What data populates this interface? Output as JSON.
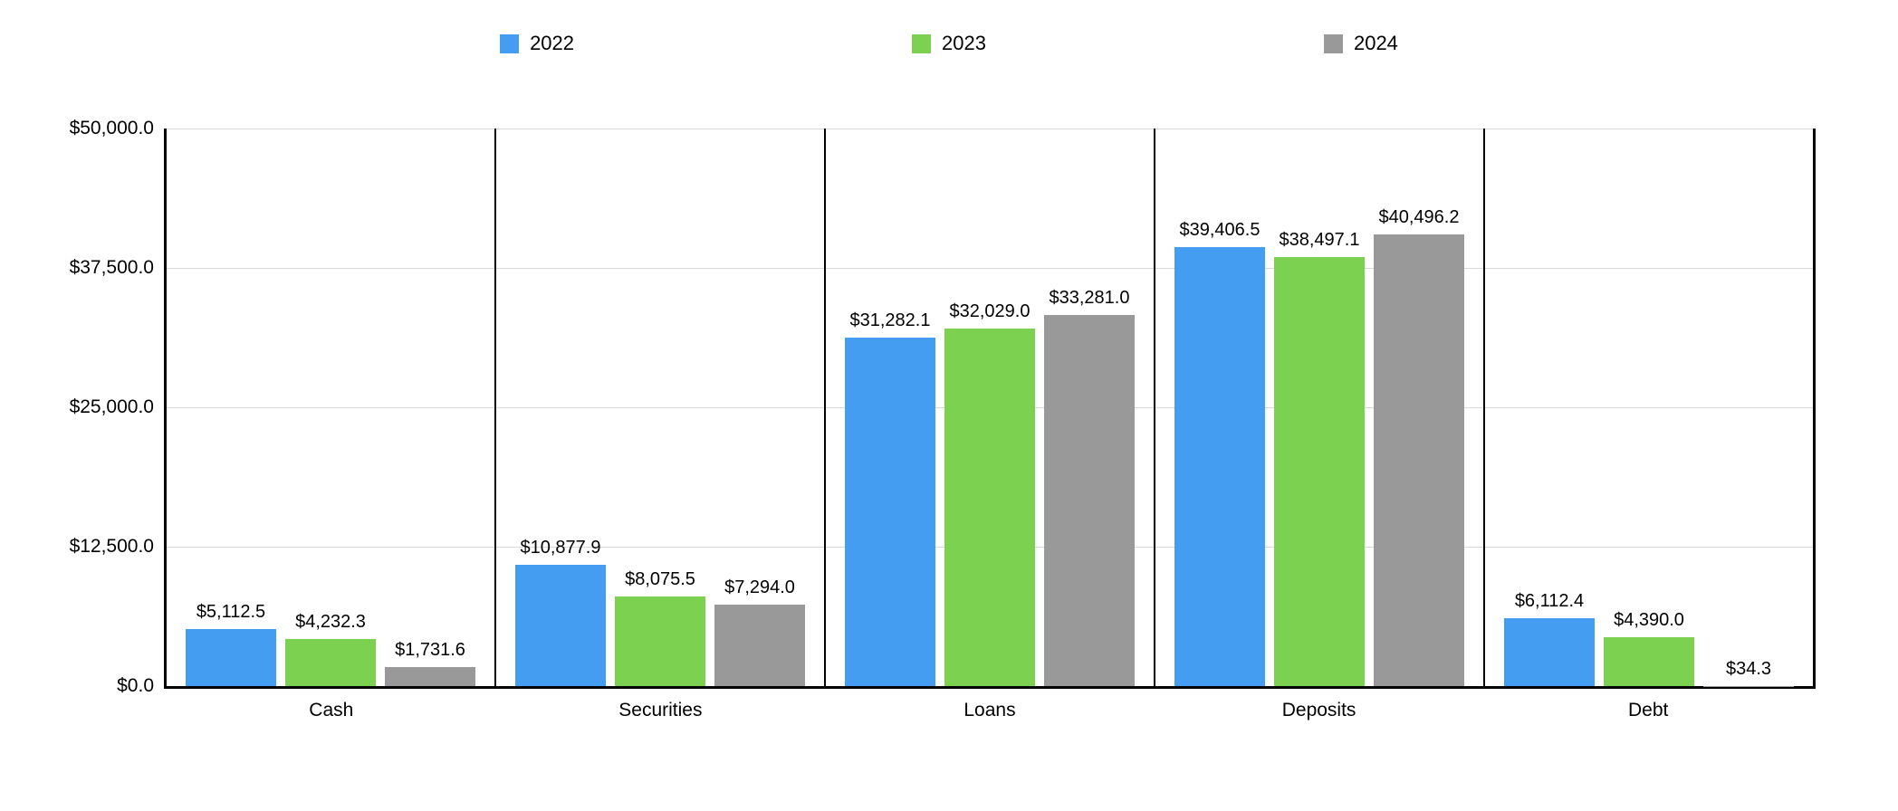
{
  "chart_data": {
    "type": "bar",
    "title": "",
    "xlabel": "",
    "ylabel": "",
    "categories": [
      "Cash",
      "Securities",
      "Loans",
      "Deposits",
      "Debt"
    ],
    "series": [
      {
        "name": "2022",
        "color": "#459df2",
        "values": [
          5112.5,
          10877.9,
          31282.1,
          39406.5,
          6112.4
        ],
        "labels": [
          "$5,112.5",
          "$10,877.9",
          "$31,282.1",
          "$39,406.5",
          "$6,112.4"
        ]
      },
      {
        "name": "2023",
        "color": "#7cd250",
        "values": [
          4232.3,
          8075.5,
          32029.0,
          38497.1,
          4390.0
        ],
        "labels": [
          "$4,232.3",
          "$8,075.5",
          "$32,029.0",
          "$38,497.1",
          "$4,390.0"
        ]
      },
      {
        "name": "2024",
        "color": "#999999",
        "values": [
          1731.6,
          7294.0,
          33281.0,
          40496.2,
          34.3
        ],
        "labels": [
          "$1,731.6",
          "$7,294.0",
          "$33,281.0",
          "$40,496.2",
          "$34.3"
        ]
      }
    ],
    "ylim": [
      0,
      50000
    ],
    "yticks": [
      {
        "value": 50000,
        "label": "$50,000.0"
      },
      {
        "value": 37500,
        "label": "$37,500.0"
      },
      {
        "value": 25000,
        "label": "$25,000.0"
      },
      {
        "value": 12500,
        "label": "$12,500.0"
      },
      {
        "value": 0,
        "label": "$0.0"
      }
    ],
    "grid": "horizontal",
    "grid_color": "#d9d9d9",
    "axis_color": "#000000",
    "background": "#ffffff",
    "legend_position": "top"
  }
}
